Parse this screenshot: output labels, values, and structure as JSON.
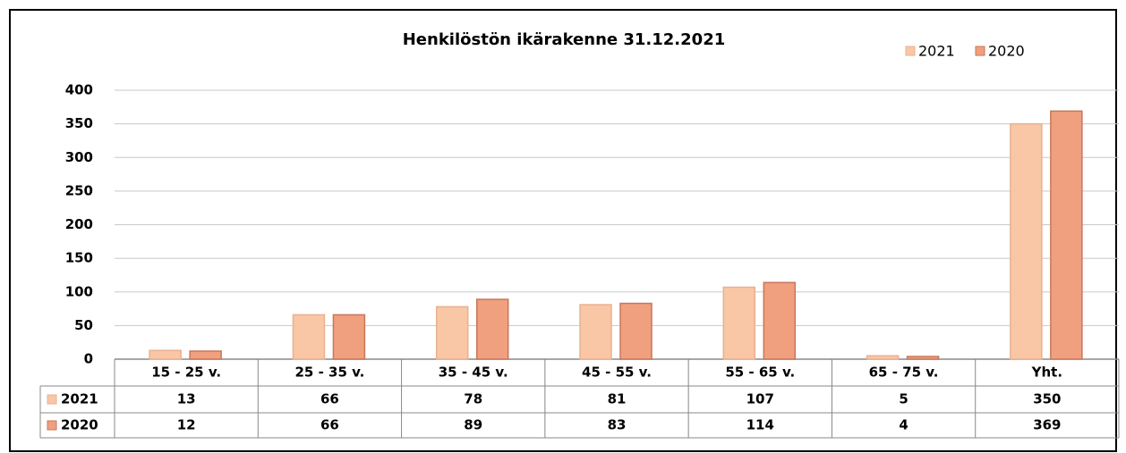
{
  "chart_data": {
    "type": "bar",
    "title": "Henkilöstön ikärakenne 31.12.2021",
    "categories": [
      "15 - 25 v.",
      "25 - 35 v.",
      "35 - 45 v.",
      "45 - 55 v.",
      "55 - 65 v.",
      "65 - 75 v.",
      "Yht."
    ],
    "series": [
      {
        "name": "2021",
        "color": "#f9c7a6",
        "values": [
          13,
          66,
          78,
          81,
          107,
          5,
          350
        ]
      },
      {
        "name": "2020",
        "color": "#f0a07e",
        "values": [
          12,
          66,
          89,
          83,
          114,
          4,
          369
        ]
      }
    ],
    "ylim": [
      0,
      400
    ],
    "yticks": [
      0,
      50,
      100,
      150,
      200,
      250,
      300,
      350,
      400
    ],
    "grid": true,
    "legend": "top-right"
  }
}
